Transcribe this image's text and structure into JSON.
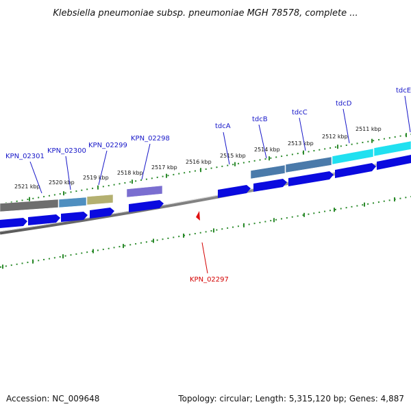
{
  "title": "Klebsiella pneumoniae subsp. pneumoniae MGH 78578, complete ...",
  "footer": {
    "accession": "Accession: NC_009648",
    "summary": "Topology: circular; Length: 5,315,120 bp; Genes: 4,887"
  },
  "colors": {
    "forward_label": "#1515c8",
    "reverse_label": "#d40000",
    "cds_arrow": "#0a0adf",
    "backbone": "#808080",
    "ruler": "#2a8a2a"
  },
  "ruler_labels": [
    "2521 kbp",
    "2520 kbp",
    "2519 kbp",
    "2518 kbp",
    "2517 kbp",
    "2516 kbp",
    "2515 kbp",
    "2514 kbp",
    "2513 kbp",
    "2512 kbp",
    "2511 kbp"
  ],
  "genes_forward": [
    {
      "name": "KPN_02301",
      "color": "#6e6e6e"
    },
    {
      "name": "KPN_02300",
      "color": "#4f8fc0"
    },
    {
      "name": "KPN_02299",
      "color": "#b4b070"
    },
    {
      "name": "KPN_02298",
      "color": "#7a6ed0"
    },
    {
      "name": "tdcA",
      "color": "#0a0adf"
    },
    {
      "name": "tdcB",
      "color": "#4a7aaa"
    },
    {
      "name": "tdcC",
      "color": "#4a7aaa"
    },
    {
      "name": "tdcD",
      "color": "#20e0f0"
    },
    {
      "name": "tdcE",
      "color": "#20e0f0"
    }
  ],
  "genes_reverse": [
    {
      "name": "KPN_02297",
      "color": "#e01010"
    }
  ]
}
